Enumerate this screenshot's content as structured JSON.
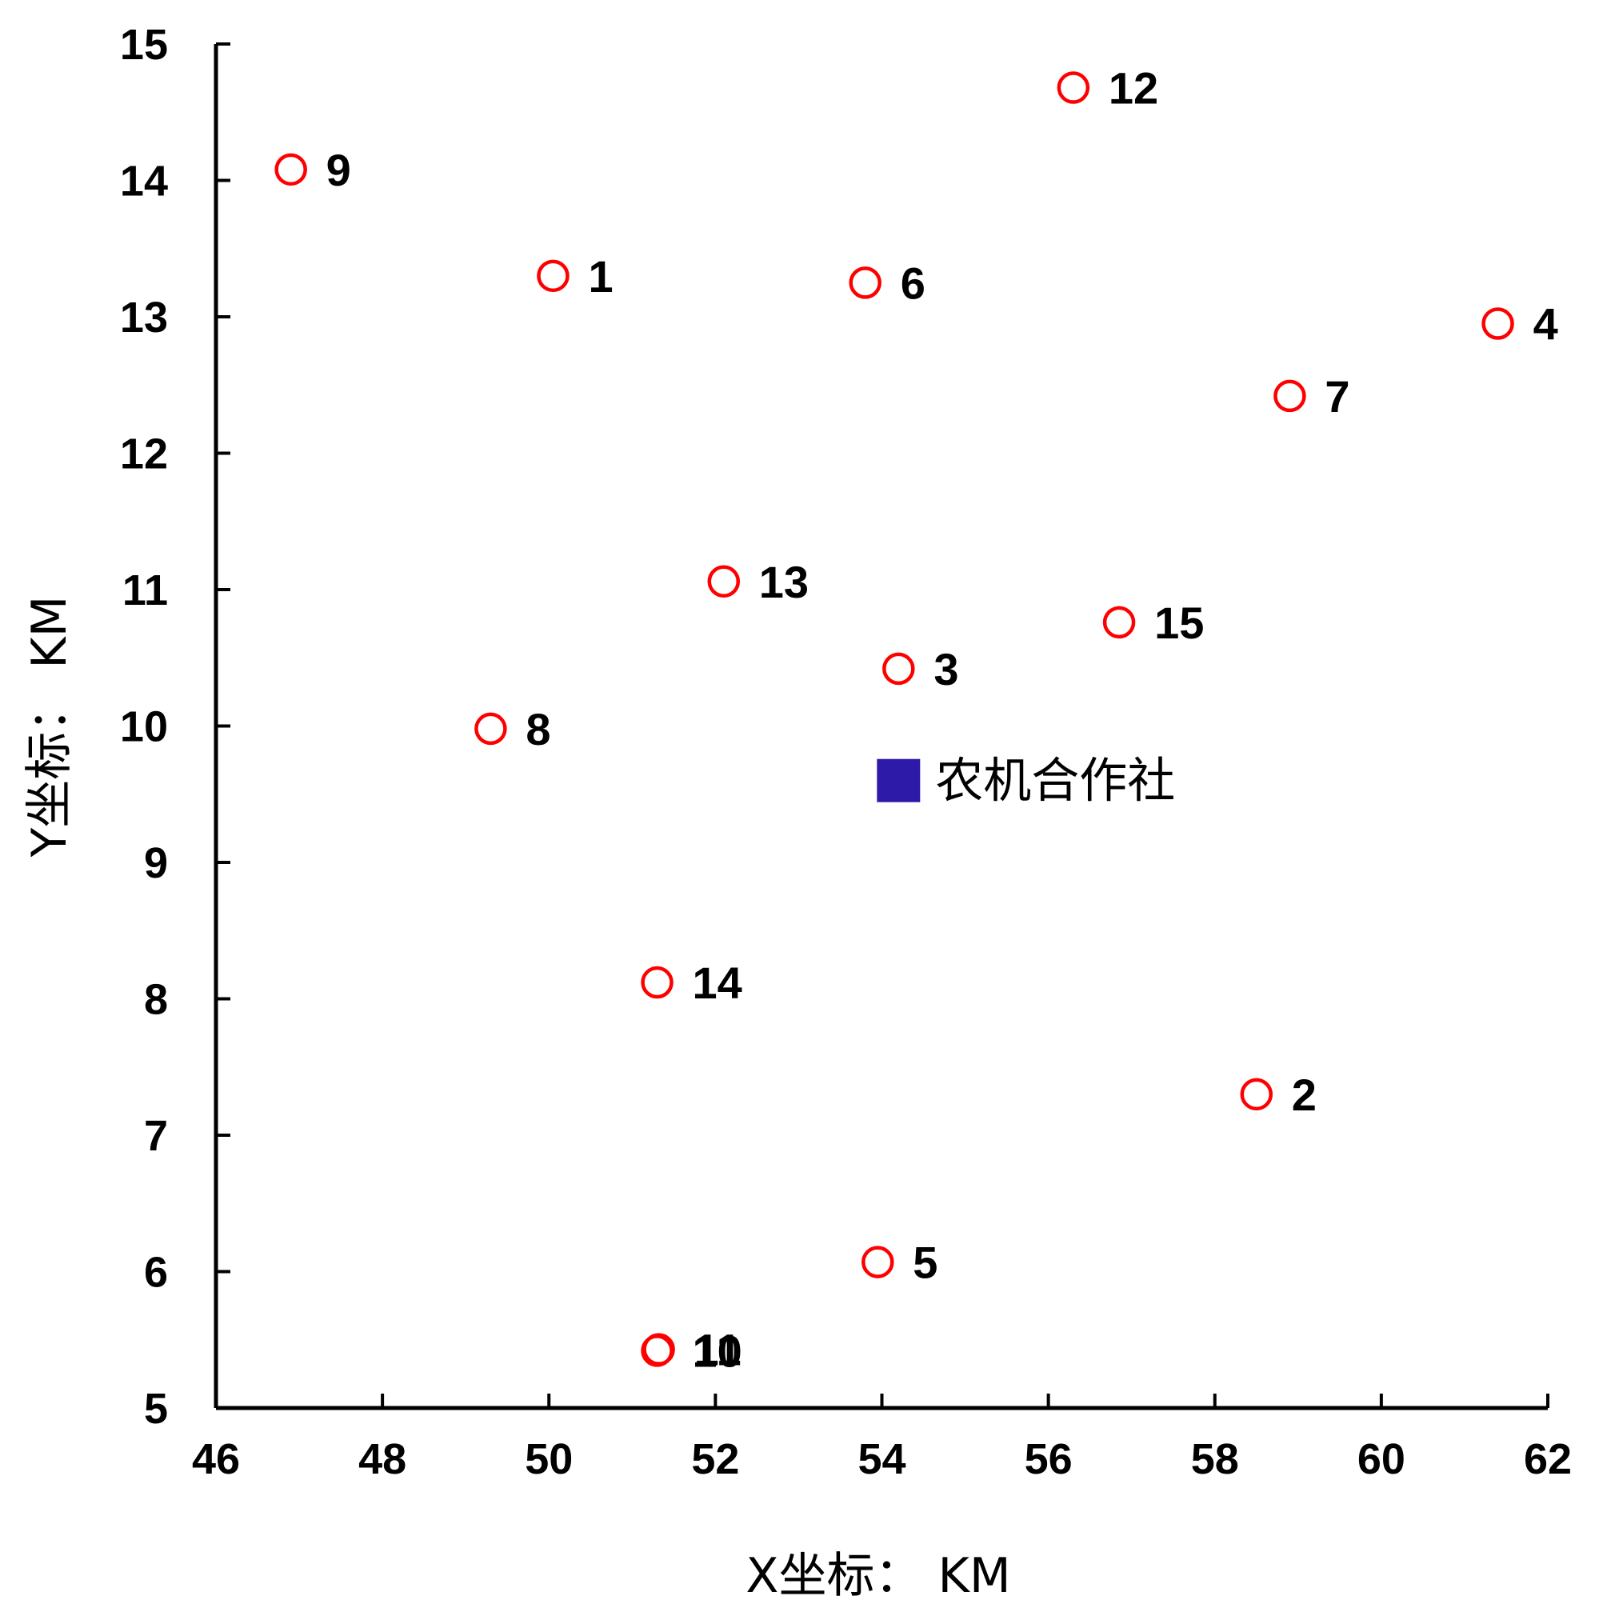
{
  "chart_data": {
    "type": "scatter",
    "title": "",
    "xlabel": "X坐标： KM",
    "ylabel": "Y坐标： KM",
    "xlim": [
      46,
      62
    ],
    "ylim": [
      5,
      15
    ],
    "xticks": [
      "46",
      "48",
      "50",
      "52",
      "54",
      "56",
      "58",
      "60",
      "62"
    ],
    "yticks": [
      "5",
      "6",
      "7",
      "8",
      "9",
      "10",
      "11",
      "12",
      "13",
      "14",
      "15"
    ],
    "grid": false,
    "series": [
      {
        "marker": "open-circle",
        "color": "#ff0000",
        "points": [
          {
            "label": "1",
            "x": 50.05,
            "y": 13.3
          },
          {
            "label": "2",
            "x": 58.5,
            "y": 7.3
          },
          {
            "label": "3",
            "x": 54.2,
            "y": 10.42
          },
          {
            "label": "4",
            "x": 61.4,
            "y": 12.95
          },
          {
            "label": "5",
            "x": 53.95,
            "y": 6.07
          },
          {
            "label": "6",
            "x": 53.8,
            "y": 13.25
          },
          {
            "label": "7",
            "x": 58.9,
            "y": 12.42
          },
          {
            "label": "8",
            "x": 49.3,
            "y": 9.98
          },
          {
            "label": "9",
            "x": 46.9,
            "y": 14.08
          },
          {
            "label": "10",
            "x": 51.3,
            "y": 5.42
          },
          {
            "label": "11",
            "x": 51.32,
            "y": 5.43
          },
          {
            "label": "12",
            "x": 56.3,
            "y": 14.68
          },
          {
            "label": "13",
            "x": 52.1,
            "y": 11.06
          },
          {
            "label": "14",
            "x": 51.3,
            "y": 8.12
          },
          {
            "label": "15",
            "x": 56.85,
            "y": 10.76
          }
        ]
      },
      {
        "name": "农机合作社",
        "marker": "filled-square",
        "color": "#2e1aa8",
        "points": [
          {
            "x": 54.2,
            "y": 9.6
          }
        ]
      }
    ]
  }
}
